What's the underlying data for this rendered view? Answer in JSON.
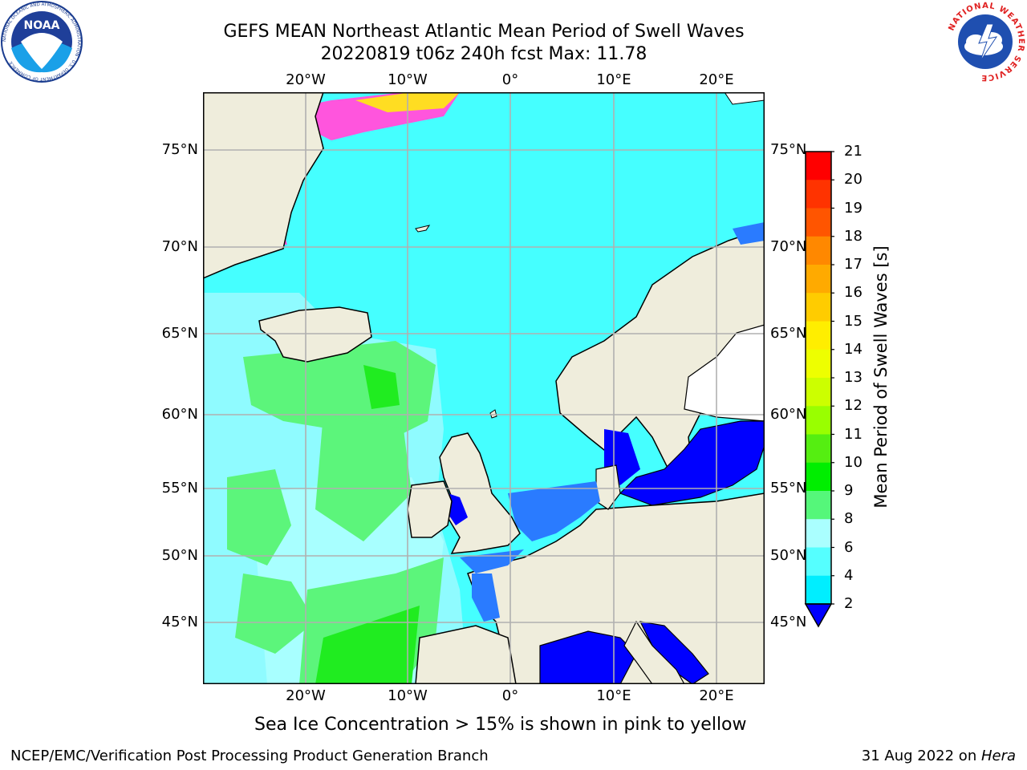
{
  "title": {
    "line1": "GEFS MEAN Northeast Atlantic Mean Period of Swell Waves",
    "line2": "20220819 t06z 240h fcst   Max: 11.78"
  },
  "map": {
    "x_ticks_top": [
      "20°W",
      "10°W",
      "0°",
      "10°E",
      "20°E"
    ],
    "x_ticks_bottom": [
      "20°W",
      "10°W",
      "0°",
      "10°E",
      "20°E"
    ],
    "y_ticks_left": [
      "75°N",
      "70°N",
      "65°N",
      "60°N",
      "55°N",
      "50°N",
      "45°N"
    ],
    "y_ticks_right": [
      "75°N",
      "70°N",
      "65°N",
      "60°N",
      "55°N",
      "50°N",
      "45°N"
    ],
    "colors": {
      "land": "#efeddc",
      "ocean_4_6": "#45ffff",
      "ocean_6_8": "#8ffbff",
      "ocean_8_9": "#a8ffff",
      "ocean_9_10": "#5cf57b",
      "ocean_10_11": "#20ec20",
      "ocean_2_4": "#2a7bff",
      "ocean_below_2": "#0000ff",
      "ice_pink": "#ff55dd",
      "ice_yellow": "#ffdd22"
    }
  },
  "colorbar": {
    "label": "Mean Period of Swell Waves [s]",
    "ticks": [
      "21",
      "20",
      "19",
      "18",
      "17",
      "16",
      "15",
      "14",
      "13",
      "12",
      "11",
      "10",
      "9",
      "8",
      "6",
      "4",
      "2"
    ],
    "colors": [
      "#ff0000",
      "#ff3300",
      "#ff5500",
      "#ff8800",
      "#ffaa00",
      "#ffcc00",
      "#ffee00",
      "#eeff00",
      "#ccff00",
      "#99ff00",
      "#55ee11",
      "#00ee00",
      "#55f77a",
      "#aaffff",
      "#55ffff",
      "#00eeff",
      "#0088ff",
      "#0000ff"
    ]
  },
  "caption": "Sea Ice Concentration > 15% is shown in pink to yellow",
  "footer": {
    "left": "NCEP/EMC/Verification Post Processing Product Generation Branch",
    "right_date": "31 Aug 2022 on ",
    "right_machine": "Hera"
  },
  "logos": {
    "noaa_text": "NOAA",
    "noaa_ring": "NATIONAL OCEANIC AND ATMOSPHERIC ADMINISTRATION · U.S. DEPARTMENT OF COMMERCE",
    "nws_ring": "NATIONAL WEATHER SERVICE"
  }
}
